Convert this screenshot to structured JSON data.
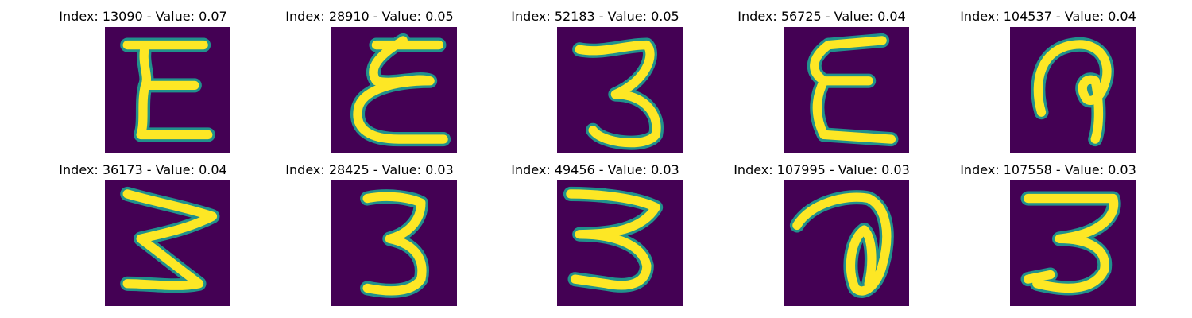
{
  "figure": {
    "background": "#ffffff",
    "tile_background": "#440154",
    "stroke_outer": "#21918c",
    "stroke_inner": "#fde725",
    "panels": [
      {
        "title": "Index: 13090 - Value: 0.07"
      },
      {
        "title": "Index: 28910 - Value: 0.05"
      },
      {
        "title": "Index: 52183 - Value: 0.05"
      },
      {
        "title": "Index: 56725 - Value: 0.04"
      },
      {
        "title": "Index: 104537 - Value: 0.04"
      },
      {
        "title": "Index: 36173 - Value: 0.04"
      },
      {
        "title": "Index: 28425 - Value: 0.03"
      },
      {
        "title": "Index: 49456 - Value: 0.03"
      },
      {
        "title": "Index: 107995 - Value: 0.03"
      },
      {
        "title": "Index: 107558 - Value: 0.03"
      }
    ]
  }
}
